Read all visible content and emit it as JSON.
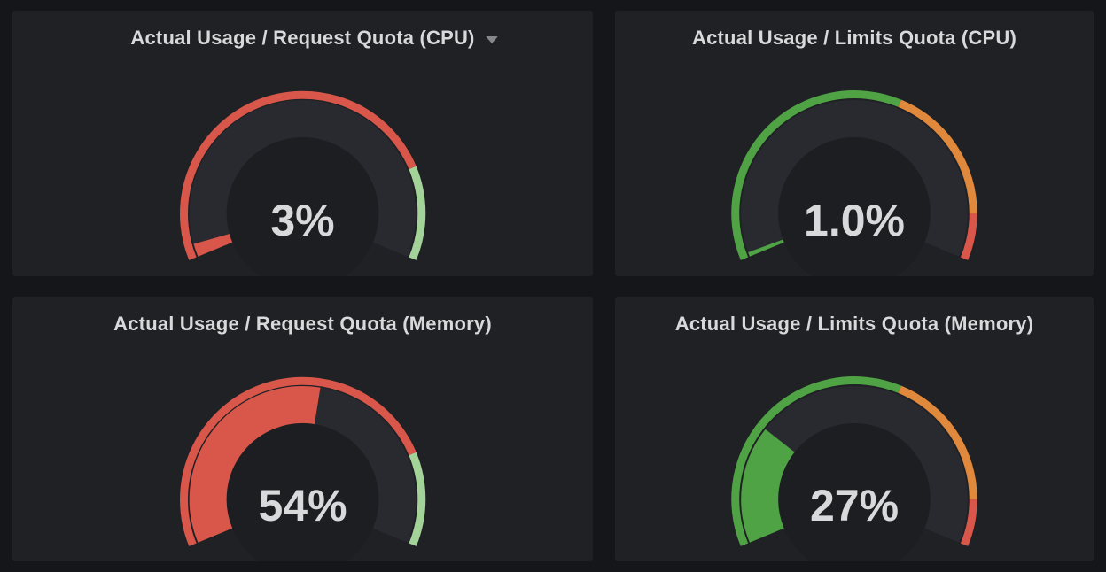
{
  "colors": {
    "red": "#d8564a",
    "orange": "#e0883b",
    "green": "#4fa344",
    "light_green": "#a3d399",
    "gauge_track": "#282a2f",
    "gauge_inner": "#1c1e22",
    "panel_bg": "#1f2125",
    "page_bg": "#15161a",
    "title_text": "#d8d9da",
    "value_text": "#d8d9da",
    "caret": "#85878a"
  },
  "panels": [
    {
      "id": "request-cpu",
      "title": "Actual Usage / Request Quota (CPU)",
      "has_menu_caret": true,
      "value_label": "3%",
      "value_percent": 3,
      "value_color": "red",
      "thresholds": [
        {
          "from": 0,
          "to": 80,
          "color": "red"
        },
        {
          "from": 80,
          "to": 100,
          "color": "light_green"
        }
      ]
    },
    {
      "id": "limits-cpu",
      "title": "Actual Usage / Limits Quota (CPU)",
      "has_menu_caret": false,
      "value_label": "1.0%",
      "value_percent": 1.0,
      "value_color": "green",
      "thresholds": [
        {
          "from": 0,
          "to": 60,
          "color": "green"
        },
        {
          "from": 60,
          "to": 90,
          "color": "orange"
        },
        {
          "from": 90,
          "to": 100,
          "color": "red"
        }
      ]
    },
    {
      "id": "request-memory",
      "title": "Actual Usage / Request Quota (Memory)",
      "has_menu_caret": false,
      "value_label": "54%",
      "value_percent": 54,
      "value_color": "red",
      "thresholds": [
        {
          "from": 0,
          "to": 80,
          "color": "red"
        },
        {
          "from": 80,
          "to": 100,
          "color": "light_green"
        }
      ]
    },
    {
      "id": "limits-memory",
      "title": "Actual Usage / Limits Quota (Memory)",
      "has_menu_caret": false,
      "value_label": "27%",
      "value_percent": 27,
      "value_color": "green",
      "thresholds": [
        {
          "from": 0,
          "to": 60,
          "color": "green"
        },
        {
          "from": 60,
          "to": 90,
          "color": "orange"
        },
        {
          "from": 90,
          "to": 100,
          "color": "red"
        }
      ]
    }
  ],
  "chart_data": [
    {
      "type": "gauge",
      "title": "Actual Usage / Request Quota (CPU)",
      "value": 3,
      "value_label": "3%",
      "unit": "percent",
      "min": 0,
      "max": 100,
      "thresholds": [
        {
          "value": 0,
          "color": "red"
        },
        {
          "value": 80,
          "color": "light-green"
        }
      ]
    },
    {
      "type": "gauge",
      "title": "Actual Usage / Limits Quota (CPU)",
      "value": 1.0,
      "value_label": "1.0%",
      "unit": "percent",
      "min": 0,
      "max": 100,
      "thresholds": [
        {
          "value": 0,
          "color": "green"
        },
        {
          "value": 60,
          "color": "orange"
        },
        {
          "value": 90,
          "color": "red"
        }
      ]
    },
    {
      "type": "gauge",
      "title": "Actual Usage / Request Quota (Memory)",
      "value": 54,
      "value_label": "54%",
      "unit": "percent",
      "min": 0,
      "max": 100,
      "thresholds": [
        {
          "value": 0,
          "color": "red"
        },
        {
          "value": 80,
          "color": "light-green"
        }
      ]
    },
    {
      "type": "gauge",
      "title": "Actual Usage / Limits Quota (Memory)",
      "value": 27,
      "value_label": "27%",
      "unit": "percent",
      "min": 0,
      "max": 100,
      "thresholds": [
        {
          "value": 0,
          "color": "green"
        },
        {
          "value": 60,
          "color": "orange"
        },
        {
          "value": 90,
          "color": "red"
        }
      ]
    }
  ]
}
